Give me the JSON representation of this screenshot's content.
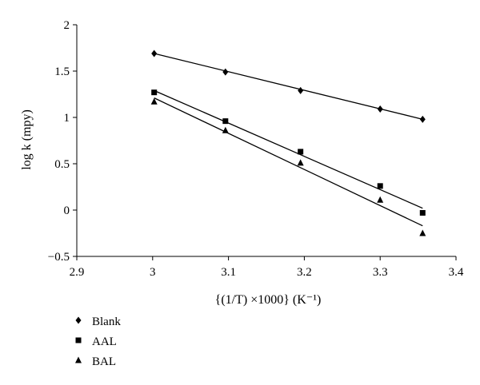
{
  "chart_data": {
    "type": "scatter",
    "title": "",
    "xlabel": "{(1/T) ×1000} (K⁻¹)",
    "ylabel": "log k (mpy)",
    "xlim": [
      2.9,
      3.4
    ],
    "ylim": [
      -0.5,
      2
    ],
    "x_ticks": [
      "2.9",
      "3",
      "3.1",
      "3.2",
      "3.3",
      "3.4"
    ],
    "y_ticks": [
      "−0.5",
      "0",
      "0.5",
      "1",
      "1.5",
      "2"
    ],
    "grid": false,
    "legend_position": "bottom-left",
    "series": [
      {
        "name": "Blank",
        "marker": "diamond",
        "x": [
          3.002,
          3.096,
          3.195,
          3.3,
          3.356
        ],
        "y": [
          1.69,
          1.49,
          1.29,
          1.09,
          0.98
        ],
        "trendline": [
          [
            3.002,
            1.69
          ],
          [
            3.356,
            0.98
          ]
        ]
      },
      {
        "name": "AAL",
        "marker": "square",
        "x": [
          3.002,
          3.096,
          3.195,
          3.3,
          3.356
        ],
        "y": [
          1.27,
          0.96,
          0.63,
          0.26,
          -0.03
        ],
        "trendline": [
          [
            3.002,
            1.29
          ],
          [
            3.356,
            0.02
          ]
        ]
      },
      {
        "name": "BAL",
        "marker": "triangle",
        "x": [
          3.002,
          3.096,
          3.195,
          3.3,
          3.356
        ],
        "y": [
          1.17,
          0.86,
          0.51,
          0.11,
          -0.25
        ],
        "trendline": [
          [
            3.002,
            1.21
          ],
          [
            3.356,
            -0.17
          ]
        ]
      }
    ]
  }
}
